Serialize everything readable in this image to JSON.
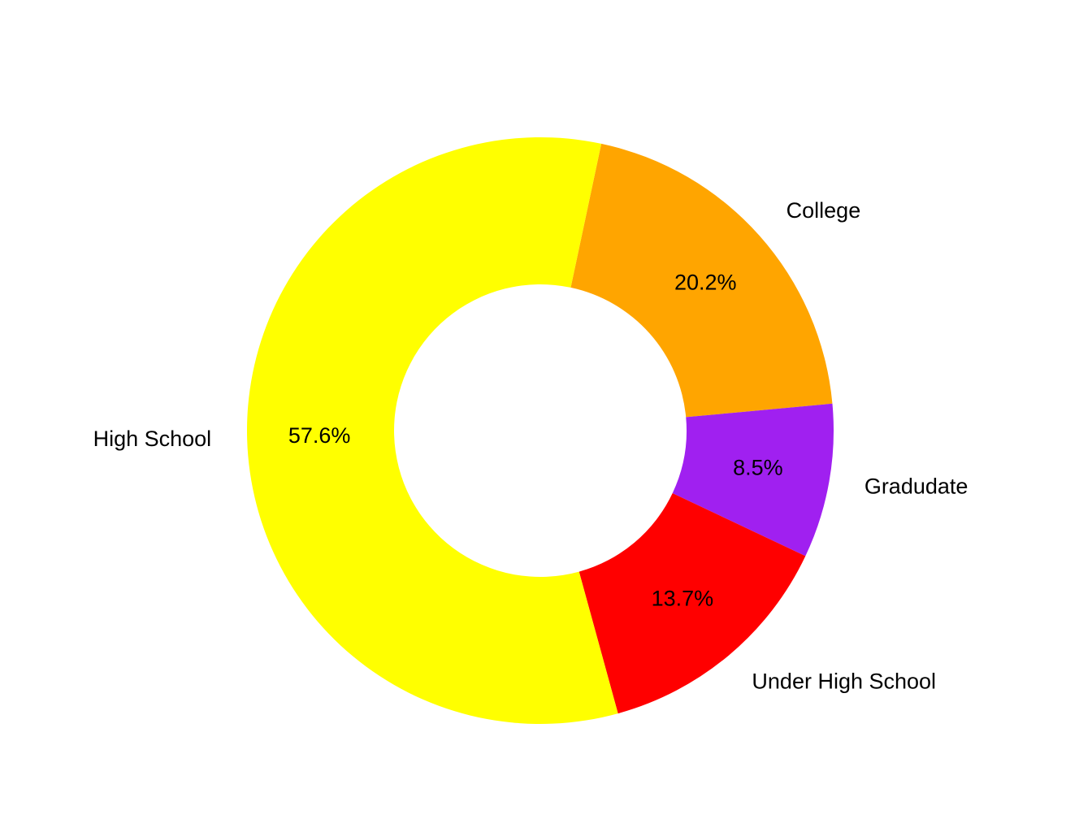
{
  "chart_data": {
    "type": "pie",
    "variant": "donut",
    "categories": [
      "College",
      "Gradudate",
      "Under High School",
      "High School"
    ],
    "values": [
      20.2,
      8.5,
      13.7,
      57.6
    ],
    "percent_labels": [
      "20.2%",
      "8.5%",
      "13.7%",
      "57.6%"
    ],
    "colors": [
      "#FFA500",
      "#A020F0",
      "#FF0000",
      "#FFFF00"
    ],
    "title": "",
    "legend": "none",
    "start_angle_deg": 78,
    "direction": "clockwise"
  }
}
